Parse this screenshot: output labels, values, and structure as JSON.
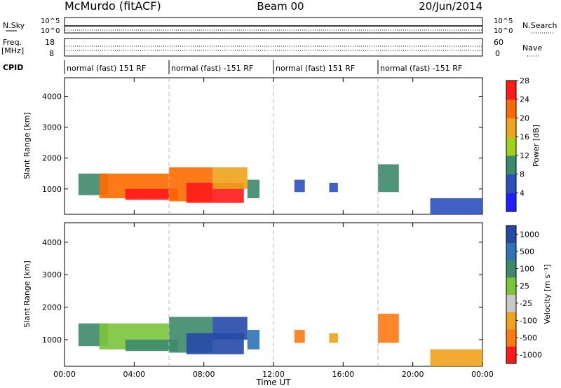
{
  "chart_data": {
    "type": "heatmap",
    "header": {
      "station": "McMurdo (fitACF)",
      "beam": "Beam 00",
      "date": "20/Jun/2014"
    },
    "noise_panel": {
      "left_label": "N.Sky",
      "right_label": "N.Search",
      "left_ticks": [
        "10^5",
        "10^0"
      ],
      "right_ticks": [
        "10^5",
        "10^0"
      ]
    },
    "freq_panel": {
      "left_label": "Freq.",
      "left_unit": "[MHz]",
      "right_label": "Nave",
      "left_ticks": [
        "18",
        "8"
      ],
      "right_ticks": [
        "60",
        "0"
      ]
    },
    "cpid": {
      "label": "CPID",
      "segments": [
        {
          "label": "normal (fast) 151 RF",
          "start": 0,
          "end": 6
        },
        {
          "label": "normal (fast) -151 RF",
          "start": 6,
          "end": 12
        },
        {
          "label": "normal (fast) 151 RF",
          "start": 12,
          "end": 18
        },
        {
          "label": "normal (fast) -151 RF",
          "start": 18,
          "end": 24
        }
      ]
    },
    "x_axis": {
      "label": "Time UT",
      "range_hours": [
        0,
        24
      ],
      "tick_labels": [
        "00:00",
        "04:00",
        "08:00",
        "12:00",
        "16:00",
        "20:00",
        "00:00"
      ],
      "tick_hours": [
        0,
        4,
        8,
        12,
        16,
        20,
        24
      ],
      "dashed_markers_hours": [
        6,
        12,
        18
      ]
    },
    "y_axis": {
      "label": "Slant Range [km]",
      "range_km": [
        180,
        4600
      ],
      "tick_labels": [
        "1000",
        "2000",
        "3000",
        "4000"
      ],
      "tick_values": [
        1000,
        2000,
        3000,
        4000
      ]
    },
    "power": {
      "colorbar_label": "Power [dB]",
      "tick_labels": [
        "4",
        "8",
        "12",
        "16",
        "20",
        "24",
        "28"
      ],
      "colors": [
        "#1f1fff",
        "#2a4fbf",
        "#3d8a6a",
        "#9fd11a",
        "#f0a21c",
        "#ff6a00",
        "#ff1a1a"
      ]
    },
    "velocity": {
      "colorbar_label": "Velocity [m s⁻¹]",
      "tick_labels": [
        "1000",
        "500",
        "100",
        "25",
        "-25",
        "-100",
        "-500",
        "-1000"
      ],
      "colors": [
        "#2649a8",
        "#2f73b5",
        "#3d8a6a",
        "#7bc43c",
        "#c8c8c8",
        "#f0a21c",
        "#ff7a12",
        "#ff1a1a"
      ]
    },
    "regions": [
      {
        "t0": 0.8,
        "t1": 2.5,
        "r0": 800,
        "r1": 1500,
        "power_db": 10,
        "velocity": 30
      },
      {
        "t0": 2.0,
        "t1": 6.0,
        "r0": 700,
        "r1": 1500,
        "power_db": 20,
        "velocity": 20
      },
      {
        "t0": 3.5,
        "t1": 6.5,
        "r0": 650,
        "r1": 1000,
        "power_db": 27,
        "velocity": 40
      },
      {
        "t0": 6.0,
        "t1": 8.5,
        "r0": 600,
        "r1": 1700,
        "power_db": 22,
        "velocity": 50
      },
      {
        "t0": 7.0,
        "t1": 10.3,
        "r0": 550,
        "r1": 1200,
        "power_db": 28,
        "velocity": 600
      },
      {
        "t0": 8.5,
        "t1": 10.5,
        "r0": 1000,
        "r1": 1700,
        "power_db": 16,
        "velocity": 700
      },
      {
        "t0": 10.5,
        "t1": 11.2,
        "r0": 700,
        "r1": 1300,
        "power_db": 10,
        "velocity": 300
      },
      {
        "t0": 13.2,
        "t1": 13.8,
        "r0": 900,
        "r1": 1300,
        "power_db": 6,
        "velocity": -100
      },
      {
        "t0": 15.2,
        "t1": 15.7,
        "r0": 900,
        "r1": 1200,
        "power_db": 6,
        "velocity": -80
      },
      {
        "t0": 18.0,
        "t1": 19.2,
        "r0": 900,
        "r1": 1800,
        "power_db": 10,
        "velocity": -150
      },
      {
        "t0": 21.0,
        "t1": 24.0,
        "r0": 180,
        "r1": 700,
        "power_db": 6,
        "velocity": -60
      }
    ]
  }
}
